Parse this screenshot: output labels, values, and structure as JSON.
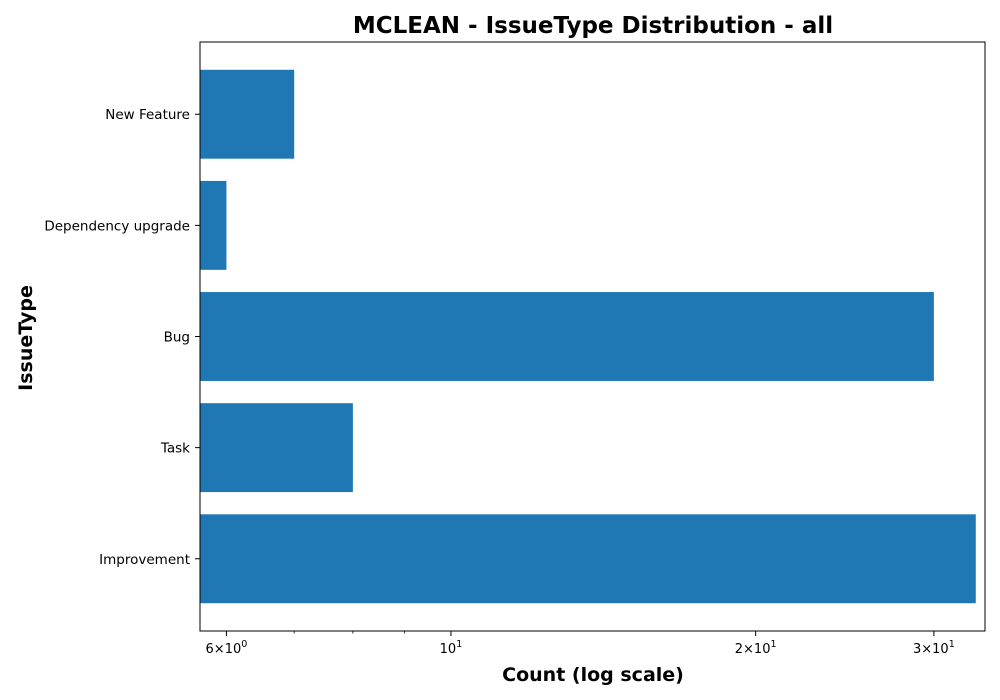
{
  "chart_data": {
    "type": "bar",
    "orientation": "horizontal",
    "title": "MCLEAN - IssueType Distribution - all",
    "xlabel": "Count (log scale)",
    "ylabel": "IssueType",
    "xscale": "log",
    "xlim": [
      5.65,
      33.7
    ],
    "categories": [
      "Improvement",
      "Task",
      "Bug",
      "Dependency upgrade",
      "New Feature"
    ],
    "values": [
      33,
      8,
      30,
      6,
      7
    ],
    "bar_color": "#1f77b4",
    "x_ticks": [
      {
        "value": 6,
        "mantissa": "6",
        "exponent": "0"
      },
      {
        "value": 10,
        "mantissa": "",
        "exponent": "1"
      },
      {
        "value": 20,
        "mantissa": "2",
        "exponent": "1"
      },
      {
        "value": 30,
        "mantissa": "3",
        "exponent": "1"
      }
    ],
    "x_minor_ticks": [
      7,
      8,
      9
    ],
    "grid": false,
    "legend": "none"
  }
}
